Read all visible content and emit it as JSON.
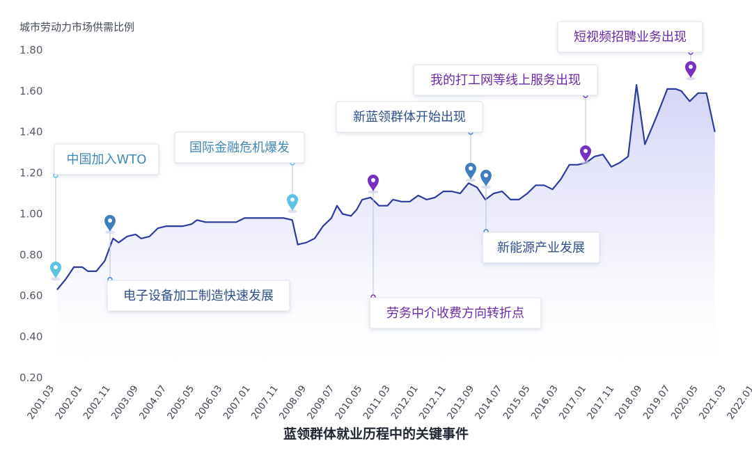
{
  "chart_data": {
    "type": "area",
    "ylabel": "城市劳动力市场供需比例",
    "caption": "蓝领群体就业历程中的关键事件",
    "ylim": [
      0.2,
      1.8
    ],
    "yticks": [
      "0.20",
      "0.40",
      "0.60",
      "0.80",
      "1.00",
      "1.20",
      "1.40",
      "1.60",
      "1.80"
    ],
    "xticks": [
      "2001.03",
      "2002.01",
      "2002.11",
      "2003.09",
      "2004.07",
      "2005.05",
      "2006.03",
      "2007.01",
      "2007.11",
      "2008.09",
      "2009.07",
      "2010.05",
      "2011.03",
      "2012.01",
      "2012.11",
      "2013.09",
      "2014.07",
      "2015.05",
      "2016.03",
      "2017.01",
      "2017.11",
      "2018.09",
      "2019.07",
      "2020.05",
      "2021.03",
      "2022.01"
    ],
    "series": [
      {
        "values": [
          [
            0,
            0.63
          ],
          [
            0.3,
            0.68
          ],
          [
            0.6,
            0.74
          ],
          [
            0.9,
            0.74
          ],
          [
            1.1,
            0.72
          ],
          [
            1.4,
            0.72
          ],
          [
            1.7,
            0.77
          ],
          [
            2.0,
            0.88
          ],
          [
            2.2,
            0.86
          ],
          [
            2.5,
            0.89
          ],
          [
            2.8,
            0.9
          ],
          [
            3.0,
            0.88
          ],
          [
            3.3,
            0.89
          ],
          [
            3.6,
            0.93
          ],
          [
            3.9,
            0.94
          ],
          [
            4.2,
            0.94
          ],
          [
            4.5,
            0.94
          ],
          [
            4.8,
            0.95
          ],
          [
            5.0,
            0.97
          ],
          [
            5.3,
            0.96
          ],
          [
            5.7,
            0.96
          ],
          [
            6.1,
            0.96
          ],
          [
            6.4,
            0.96
          ],
          [
            6.7,
            0.98
          ],
          [
            7.0,
            0.98
          ],
          [
            7.4,
            0.98
          ],
          [
            7.8,
            0.98
          ],
          [
            8.1,
            0.98
          ],
          [
            8.4,
            0.97
          ],
          [
            8.6,
            0.85
          ],
          [
            8.9,
            0.86
          ],
          [
            9.2,
            0.88
          ],
          [
            9.5,
            0.94
          ],
          [
            9.8,
            0.98
          ],
          [
            10.0,
            1.04
          ],
          [
            10.2,
            1.0
          ],
          [
            10.5,
            0.99
          ],
          [
            10.7,
            1.02
          ],
          [
            10.9,
            1.07
          ],
          [
            11.2,
            1.08
          ],
          [
            11.5,
            1.04
          ],
          [
            11.8,
            1.04
          ],
          [
            12.0,
            1.07
          ],
          [
            12.3,
            1.06
          ],
          [
            12.6,
            1.06
          ],
          [
            12.9,
            1.09
          ],
          [
            13.2,
            1.07
          ],
          [
            13.5,
            1.08
          ],
          [
            13.8,
            1.11
          ],
          [
            14.1,
            1.11
          ],
          [
            14.4,
            1.1
          ],
          [
            14.7,
            1.15
          ],
          [
            15.0,
            1.13
          ],
          [
            15.3,
            1.07
          ],
          [
            15.6,
            1.1
          ],
          [
            15.9,
            1.11
          ],
          [
            16.2,
            1.07
          ],
          [
            16.5,
            1.07
          ],
          [
            16.8,
            1.1
          ],
          [
            17.1,
            1.14
          ],
          [
            17.4,
            1.14
          ],
          [
            17.7,
            1.12
          ],
          [
            18.0,
            1.17
          ],
          [
            18.3,
            1.24
          ],
          [
            18.6,
            1.24
          ],
          [
            18.9,
            1.25
          ],
          [
            19.2,
            1.28
          ],
          [
            19.5,
            1.29
          ],
          [
            19.8,
            1.23
          ],
          [
            20.1,
            1.25
          ],
          [
            20.4,
            1.28
          ],
          [
            20.7,
            1.63
          ],
          [
            21.0,
            1.34
          ],
          [
            21.4,
            1.47
          ],
          [
            21.8,
            1.61
          ],
          [
            22.1,
            1.61
          ],
          [
            22.3,
            1.6
          ],
          [
            22.6,
            1.55
          ],
          [
            22.9,
            1.59
          ],
          [
            23.2,
            1.59
          ],
          [
            23.5,
            1.4
          ]
        ]
      }
    ],
    "annotations": [
      {
        "label": "中国加入WTO",
        "color": "#3f88b8",
        "pin": "#5cc2e6"
      },
      {
        "label": "电子设备加工制造快速发展",
        "color": "#2f4f8c",
        "pin": "#3f7fc0"
      },
      {
        "label": "国际金融危机爆发",
        "color": "#3f88b8",
        "pin": "#5cc2e6"
      },
      {
        "label": "劳务中介收费方向转折点",
        "color": "#6a2aa7",
        "pin": "#7a2fc3"
      },
      {
        "label": "新蓝领群体开始出现",
        "color": "#2f4f8c",
        "pin": "#3f7fc0"
      },
      {
        "label": "新能源产业发展",
        "color": "#2f4f8c",
        "pin": "#3f7fc0"
      },
      {
        "label": "我的打工网等线上服务出现",
        "color": "#6a2aa7",
        "pin": "#7a2fc3"
      },
      {
        "label": "短视频招聘业务出现",
        "color": "#6a2aa7",
        "pin": "#7a2fc3"
      }
    ],
    "line_color": "#2b3b9e",
    "fill_color": "#6f6fe0"
  }
}
